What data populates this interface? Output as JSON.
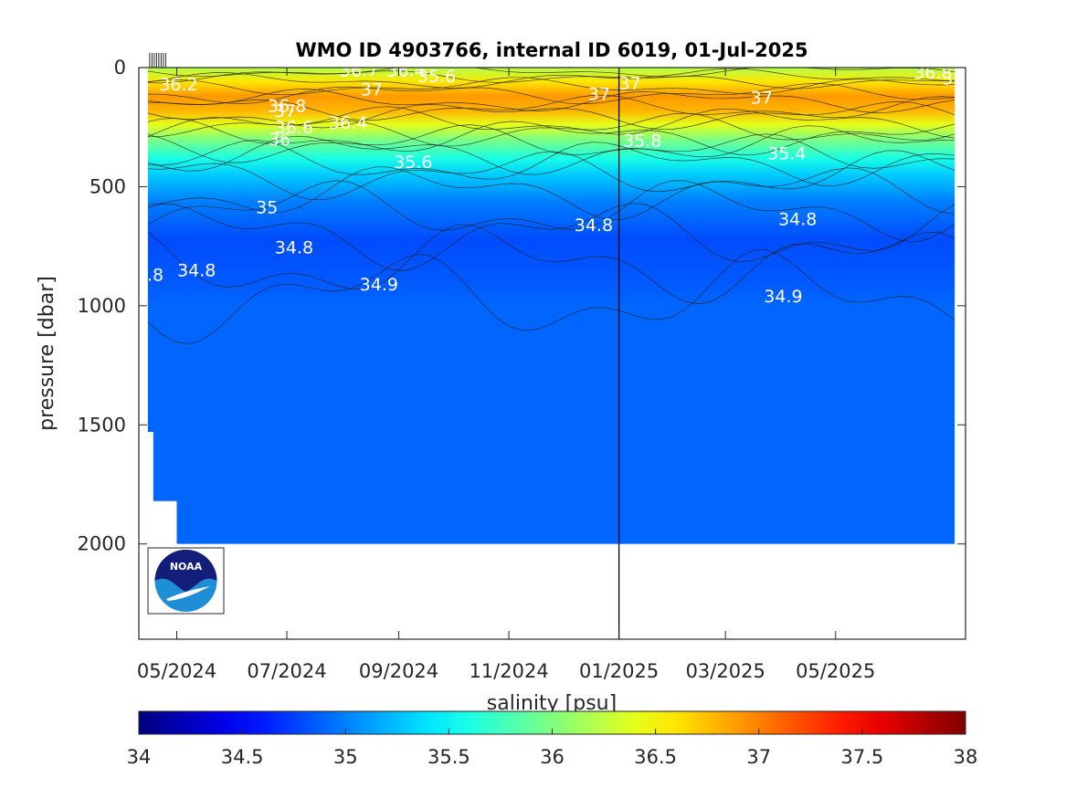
{
  "chart_data": {
    "type": "heatmap",
    "title": "WMO ID 4903766, internal ID 6019, 01-Jul-2025",
    "xlabel": "salinity [psu]",
    "ylabel": "pressure [dbar]",
    "x_ticks": [
      "05/2024",
      "07/2024",
      "09/2024",
      "11/2024",
      "01/2025",
      "03/2025",
      "05/2025"
    ],
    "x_tick_dates": [
      "2024-05-01",
      "2024-07-01",
      "2024-09-01",
      "2024-11-01",
      "2025-01-01",
      "2025-03-01",
      "2025-05-01"
    ],
    "xlim": [
      "2024-04-10",
      "2025-07-12"
    ],
    "ylim": [
      2400,
      0
    ],
    "y_ticks": [
      0,
      500,
      1000,
      1500,
      2000
    ],
    "y_reversed": true,
    "data_extent": {
      "start": "2024-04-15",
      "end": "2025-07-06",
      "max_pressure": 2000
    },
    "vertical_marker_date": "2025-01-01",
    "colorbar": {
      "label": "salinity [psu]",
      "range": [
        34,
        38
      ],
      "ticks": [
        34,
        34.5,
        35,
        35.5,
        36,
        36.5,
        37,
        37.5,
        38
      ],
      "colormap": "jet"
    },
    "salinity_profile": [
      {
        "pressure": 0,
        "salinity": 36.2
      },
      {
        "pressure": 60,
        "salinity": 36.6
      },
      {
        "pressure": 120,
        "salinity": 36.9
      },
      {
        "pressure": 180,
        "salinity": 36.8
      },
      {
        "pressure": 240,
        "salinity": 36.4
      },
      {
        "pressure": 300,
        "salinity": 36.0
      },
      {
        "pressure": 380,
        "salinity": 35.6
      },
      {
        "pressure": 450,
        "salinity": 35.3
      },
      {
        "pressure": 560,
        "salinity": 35.0
      },
      {
        "pressure": 720,
        "salinity": 34.8
      },
      {
        "pressure": 900,
        "salinity": 34.85
      },
      {
        "pressure": 1000,
        "salinity": 34.9
      },
      {
        "pressure": 2000,
        "salinity": 34.9
      }
    ],
    "contour_labels": [
      {
        "text": "36.2",
        "date": "2024-05-02",
        "pressure": 75
      },
      {
        "text": "36.7",
        "date": "2024-08-10",
        "pressure": 15
      },
      {
        "text": "36.4",
        "date": "2024-09-05",
        "pressure": 15
      },
      {
        "text": "35.6",
        "date": "2024-09-22",
        "pressure": 40
      },
      {
        "text": "37",
        "date": "2024-08-17",
        "pressure": 95
      },
      {
        "text": "36.8",
        "date": "2024-07-01",
        "pressure": 165
      },
      {
        "text": "37",
        "date": "2024-06-30",
        "pressure": 185
      },
      {
        "text": "36.6",
        "date": "2024-07-05",
        "pressure": 255
      },
      {
        "text": "36.4",
        "date": "2024-08-04",
        "pressure": 235
      },
      {
        "text": "36",
        "date": "2024-06-27",
        "pressure": 305
      },
      {
        "text": "35.6",
        "date": "2024-09-09",
        "pressure": 400
      },
      {
        "text": "37",
        "date": "2024-12-21",
        "pressure": 115
      },
      {
        "text": "37",
        "date": "2025-01-07",
        "pressure": 70
      },
      {
        "text": "35.8",
        "date": "2025-01-14",
        "pressure": 310
      },
      {
        "text": "37",
        "date": "2025-03-21",
        "pressure": 130
      },
      {
        "text": "35.4",
        "date": "2025-04-04",
        "pressure": 365
      },
      {
        "text": "36.8",
        "date": "2025-06-24",
        "pressure": 25
      },
      {
        "text": "37",
        "date": "2025-07-05",
        "pressure": 50
      },
      {
        "text": "35",
        "date": "2024-06-20",
        "pressure": 590
      },
      {
        "text": "34.8",
        "date": "2024-12-18",
        "pressure": 665
      },
      {
        "text": "34.8",
        "date": "2024-07-05",
        "pressure": 760
      },
      {
        "text": "34.8",
        "date": "2025-04-10",
        "pressure": 640
      },
      {
        "text": "34.8",
        "date": "2024-04-13",
        "pressure": 875
      },
      {
        "text": "34.8",
        "date": "2024-05-12",
        "pressure": 855
      },
      {
        "text": "34.9",
        "date": "2024-08-21",
        "pressure": 915
      },
      {
        "text": "34.9",
        "date": "2025-04-02",
        "pressure": 965
      }
    ]
  },
  "logo": {
    "text": "NOAA"
  }
}
